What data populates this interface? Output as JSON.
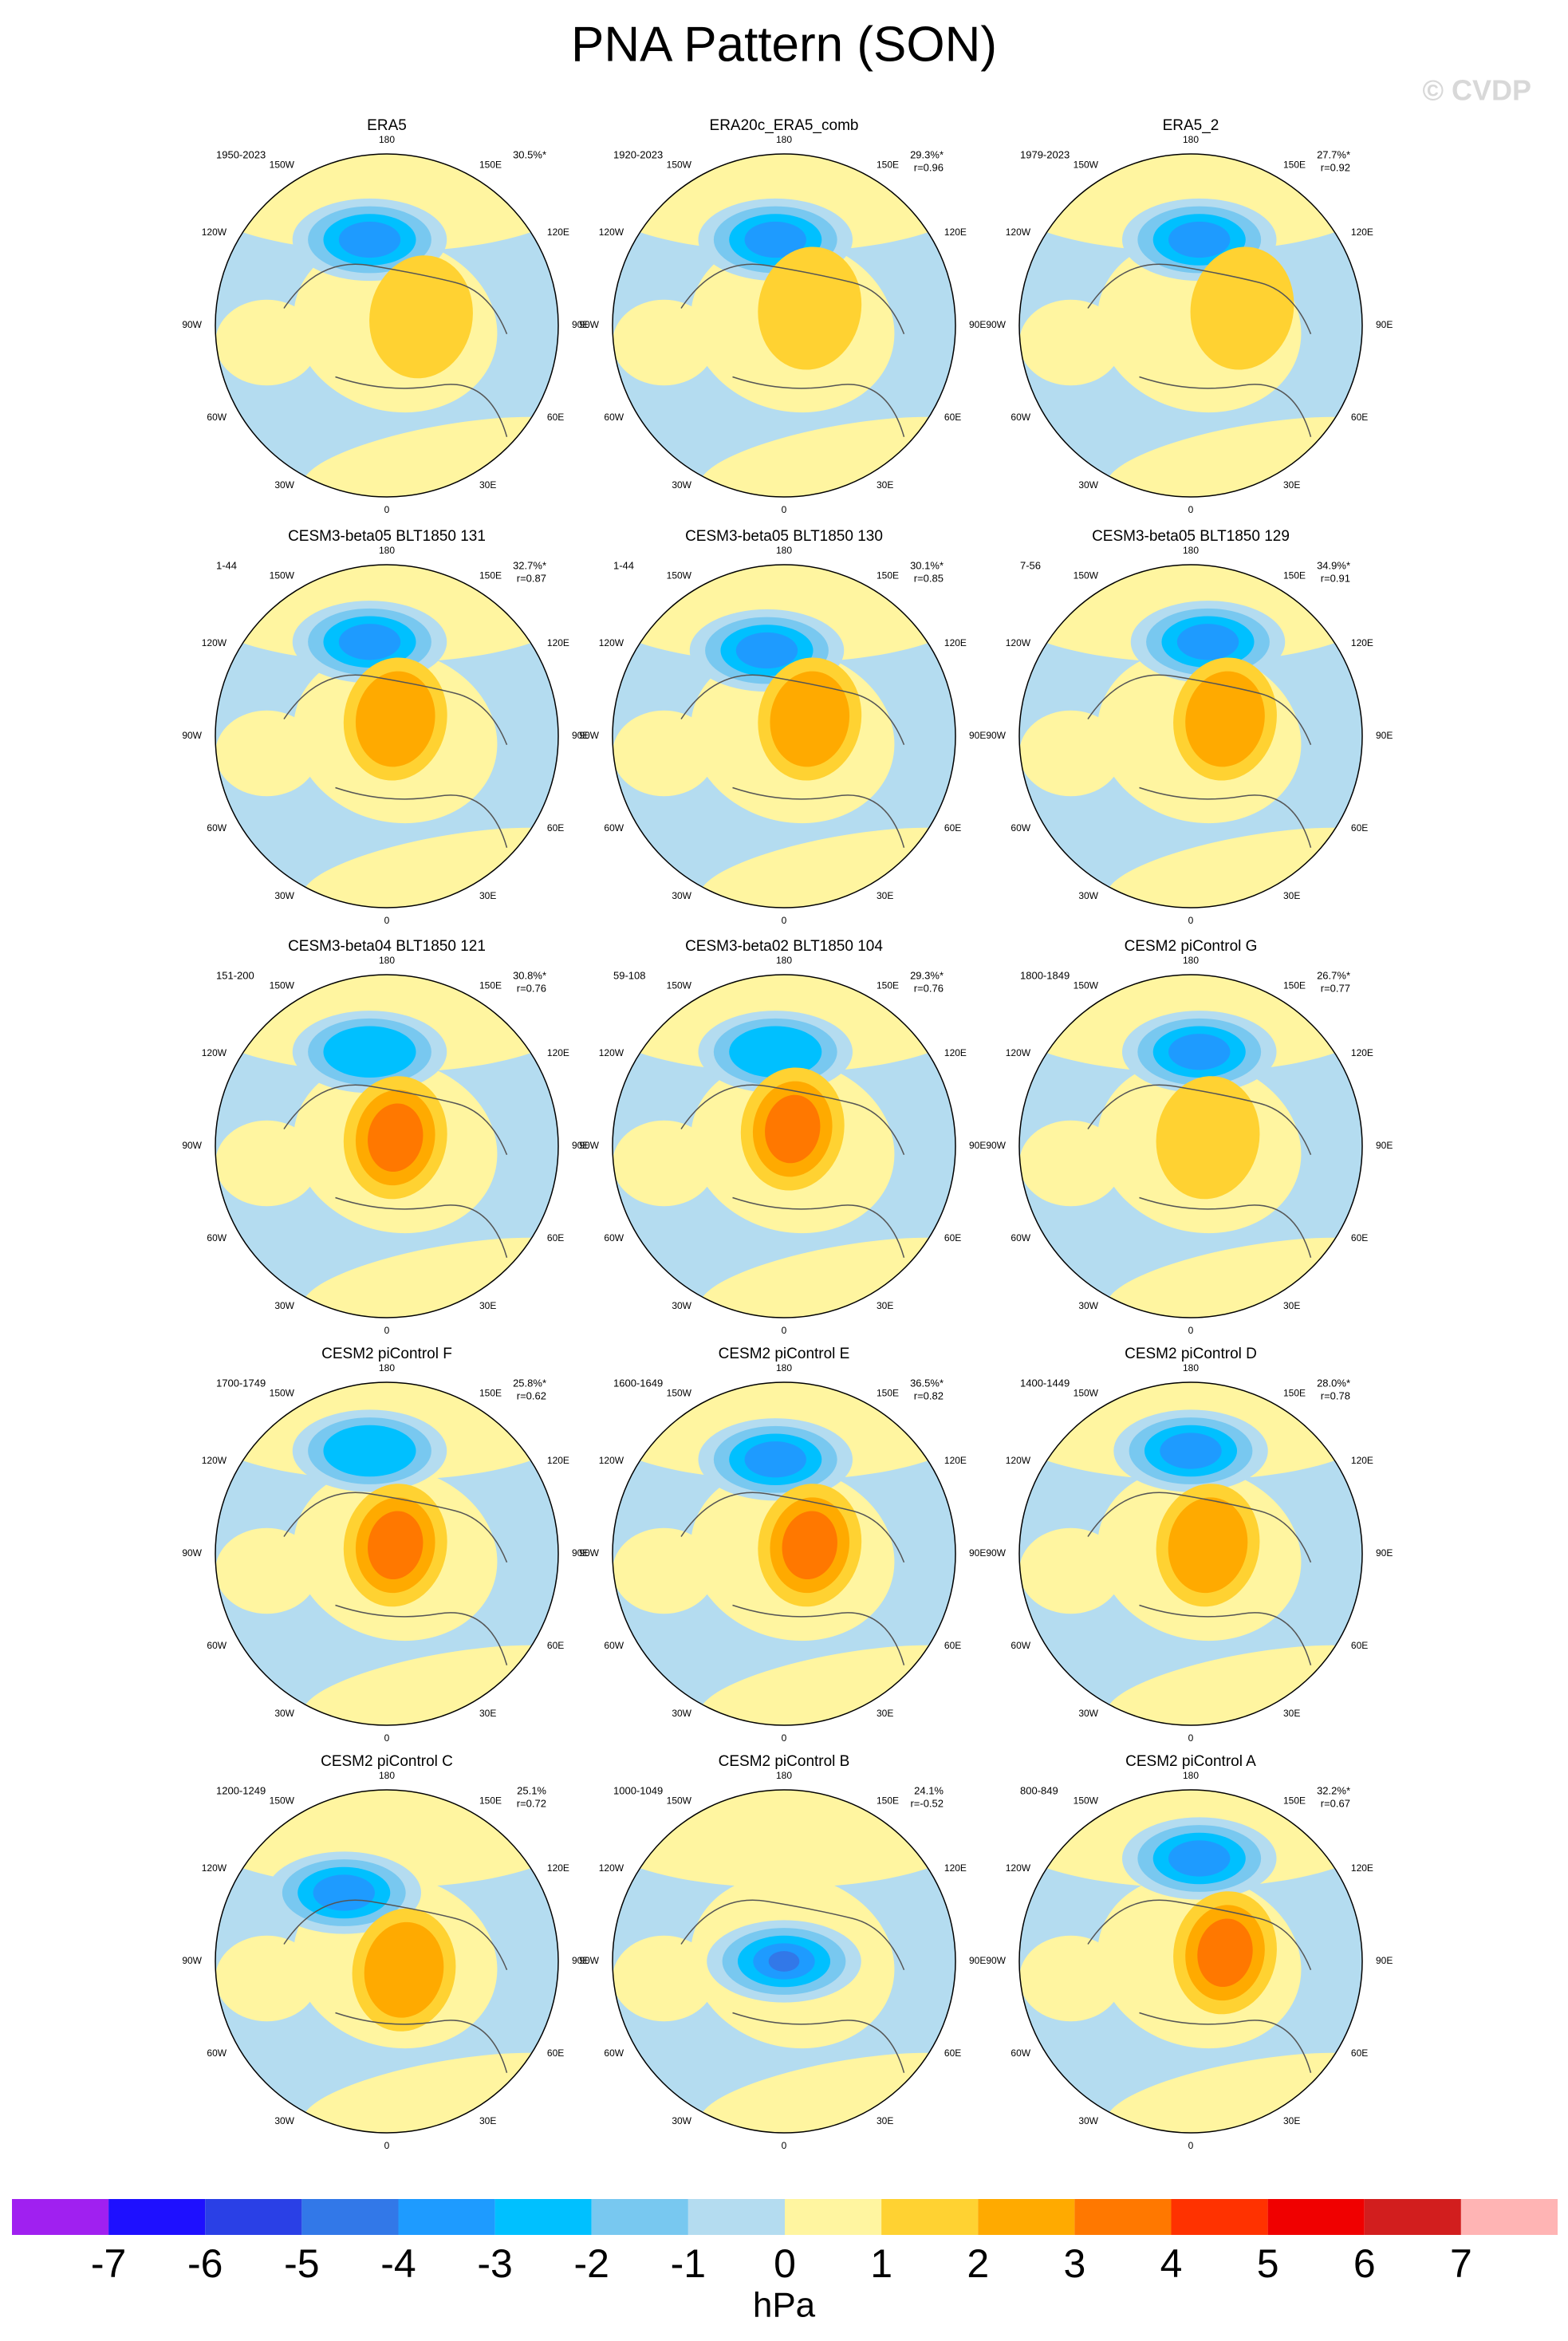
{
  "title": "PNA Pattern (SON)",
  "watermark": "© CVDP",
  "longitude_labels": [
    "180",
    "150E",
    "120E",
    "90E",
    "60E",
    "30E",
    "0",
    "30W",
    "60W",
    "90W",
    "120W",
    "150W"
  ],
  "panels": [
    {
      "title": "ERA5",
      "period": "1950-2023",
      "pct": "30.5%*"
    },
    {
      "title": "ERA20c_ERA5_comb",
      "period": "1920-2023",
      "pct": "29.3%*",
      "r": "r=0.96"
    },
    {
      "title": "ERA5_2",
      "period": "1979-2023",
      "pct": "27.7%*",
      "r": "r=0.92"
    },
    {
      "title": "CESM3-beta05 BLT1850 131",
      "period": "1-44",
      "pct": "32.7%*",
      "r": "r=0.87"
    },
    {
      "title": "CESM3-beta05 BLT1850 130",
      "period": "1-44",
      "pct": "30.1%*",
      "r": "r=0.85"
    },
    {
      "title": "CESM3-beta05 BLT1850 129",
      "period": "7-56",
      "pct": "34.9%*",
      "r": "r=0.91"
    },
    {
      "title": "CESM3-beta04 BLT1850 121",
      "period": "151-200",
      "pct": "30.8%*",
      "r": "r=0.76"
    },
    {
      "title": "CESM3-beta02 BLT1850 104",
      "period": "59-108",
      "pct": "29.3%*",
      "r": "r=0.76"
    },
    {
      "title": "CESM2 piControl G",
      "period": "1800-1849",
      "pct": "26.7%*",
      "r": "r=0.77"
    },
    {
      "title": "CESM2 piControl F",
      "period": "1700-1749",
      "pct": "25.8%*",
      "r": "r=0.62"
    },
    {
      "title": "CESM2 piControl E",
      "period": "1600-1649",
      "pct": "36.5%*",
      "r": "r=0.82"
    },
    {
      "title": "CESM2 piControl D",
      "period": "1400-1449",
      "pct": "28.0%*",
      "r": "r=0.78"
    },
    {
      "title": "CESM2 piControl C",
      "period": "1200-1249",
      "pct": "25.1%",
      "r": "r=0.72"
    },
    {
      "title": "CESM2 piControl B",
      "period": "1000-1049",
      "pct": "24.1%",
      "r": "r=-0.52"
    },
    {
      "title": "CESM2 piControl A",
      "period": "800-849",
      "pct": "32.2%*",
      "r": "r=0.67"
    }
  ],
  "colorbar": {
    "colors": [
      "#a020f0",
      "#1e10ff",
      "#2a40e6",
      "#3278e8",
      "#1e9bff",
      "#00c0ff",
      "#78c8f0",
      "#b4dcf0",
      "#fff5a0",
      "#ffd232",
      "#ffaa00",
      "#ff7800",
      "#ff3200",
      "#f00000",
      "#d21e1e",
      "#ffb4b4"
    ],
    "ticks": [
      -7,
      -6,
      -5,
      -4,
      -3,
      -2,
      -1,
      0,
      1,
      2,
      3,
      4,
      5,
      6,
      7
    ],
    "units": "hPa"
  }
}
